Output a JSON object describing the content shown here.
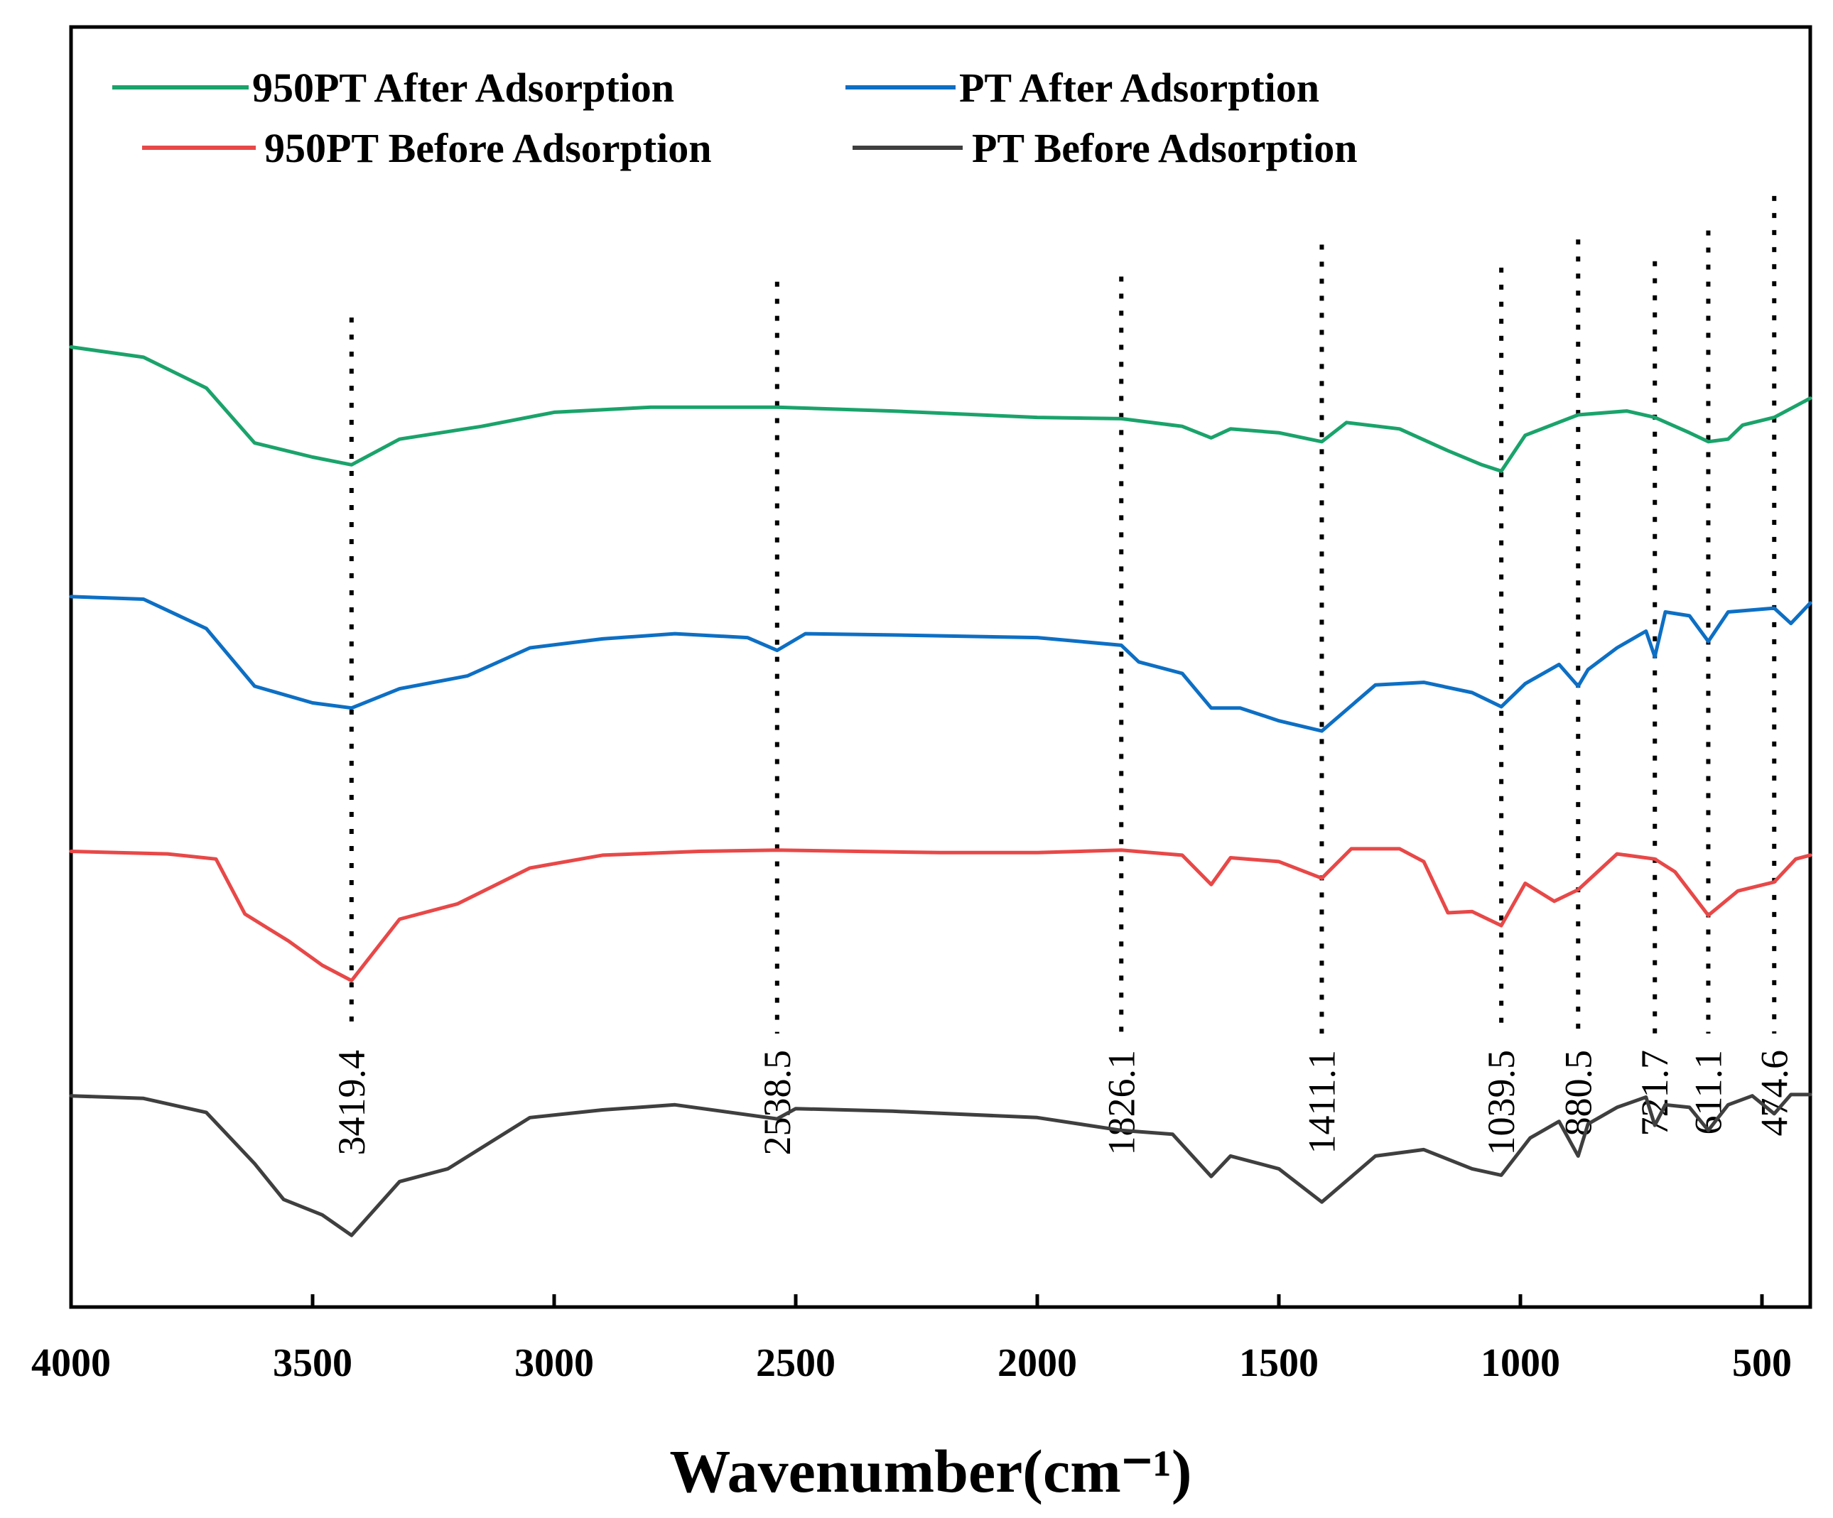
{
  "chart_data": {
    "type": "line",
    "title": "",
    "xlabel": "Wavenumber(cm⁻¹)",
    "ylabel": "",
    "xlim": [
      4000,
      400
    ],
    "ylim": [
      0,
      100
    ],
    "x_reversed": true,
    "grid": false,
    "legend_position": "top",
    "xticks": [
      "4000",
      "3500",
      "3000",
      "2500",
      "2000",
      "1500",
      "1000",
      "500"
    ],
    "series": [
      {
        "name": "950PT After Adsorption",
        "legend_label": "950PT After Adsorption",
        "color": "#1aa36b",
        "points": [
          [
            4000,
            75.0
          ],
          [
            3850,
            74.2
          ],
          [
            3720,
            71.8
          ],
          [
            3620,
            67.5
          ],
          [
            3500,
            66.4
          ],
          [
            3419.4,
            65.8
          ],
          [
            3320,
            67.8
          ],
          [
            3150,
            68.8
          ],
          [
            3000,
            69.9
          ],
          [
            2800,
            70.3
          ],
          [
            2538.5,
            70.3
          ],
          [
            2300,
            70.0
          ],
          [
            2000,
            69.5
          ],
          [
            1826.1,
            69.4
          ],
          [
            1700,
            68.8
          ],
          [
            1640,
            67.9
          ],
          [
            1600,
            68.6
          ],
          [
            1500,
            68.3
          ],
          [
            1411.1,
            67.6
          ],
          [
            1360,
            69.1
          ],
          [
            1250,
            68.6
          ],
          [
            1150,
            66.9
          ],
          [
            1080,
            65.8
          ],
          [
            1039.5,
            65.3
          ],
          [
            990,
            68.1
          ],
          [
            880.5,
            69.7
          ],
          [
            780,
            70.0
          ],
          [
            721.7,
            69.5
          ],
          [
            650,
            68.3
          ],
          [
            611.1,
            67.6
          ],
          [
            570,
            67.8
          ],
          [
            540,
            68.9
          ],
          [
            474.6,
            69.5
          ],
          [
            400,
            71.0
          ]
        ]
      },
      {
        "name": "PT After Adsorption",
        "legend_label": "PT After Adsorption",
        "color": "#0d6fc4",
        "points": [
          [
            4000,
            55.5
          ],
          [
            3850,
            55.3
          ],
          [
            3720,
            53.0
          ],
          [
            3620,
            48.5
          ],
          [
            3500,
            47.2
          ],
          [
            3419.4,
            46.8
          ],
          [
            3320,
            48.3
          ],
          [
            3180,
            49.3
          ],
          [
            3050,
            51.5
          ],
          [
            2900,
            52.2
          ],
          [
            2750,
            52.6
          ],
          [
            2600,
            52.3
          ],
          [
            2538.5,
            51.3
          ],
          [
            2480,
            52.6
          ],
          [
            2300,
            52.5
          ],
          [
            2000,
            52.3
          ],
          [
            1826.1,
            51.7
          ],
          [
            1790,
            50.4
          ],
          [
            1700,
            49.5
          ],
          [
            1640,
            46.8
          ],
          [
            1580,
            46.8
          ],
          [
            1500,
            45.8
          ],
          [
            1411.1,
            45.0
          ],
          [
            1300,
            48.6
          ],
          [
            1200,
            48.8
          ],
          [
            1100,
            48.0
          ],
          [
            1039.5,
            46.9
          ],
          [
            990,
            48.7
          ],
          [
            920,
            50.2
          ],
          [
            880.5,
            48.5
          ],
          [
            860,
            49.8
          ],
          [
            800,
            51.5
          ],
          [
            740,
            52.8
          ],
          [
            721.7,
            50.8
          ],
          [
            700,
            54.3
          ],
          [
            650,
            54.0
          ],
          [
            611.1,
            52.0
          ],
          [
            570,
            54.3
          ],
          [
            474.6,
            54.6
          ],
          [
            440,
            53.4
          ],
          [
            400,
            55.0
          ]
        ]
      },
      {
        "name": "950PT Before Adsorption",
        "legend_label": "950PT Before Adsorption",
        "color": "#e84848",
        "points": [
          [
            4000,
            35.6
          ],
          [
            3800,
            35.4
          ],
          [
            3700,
            35.0
          ],
          [
            3640,
            30.7
          ],
          [
            3550,
            28.6
          ],
          [
            3480,
            26.7
          ],
          [
            3419.4,
            25.5
          ],
          [
            3320,
            30.3
          ],
          [
            3200,
            31.5
          ],
          [
            3050,
            34.3
          ],
          [
            2900,
            35.3
          ],
          [
            2700,
            35.6
          ],
          [
            2538.5,
            35.7
          ],
          [
            2200,
            35.5
          ],
          [
            2000,
            35.5
          ],
          [
            1826.1,
            35.7
          ],
          [
            1700,
            35.3
          ],
          [
            1640,
            33.0
          ],
          [
            1600,
            35.1
          ],
          [
            1500,
            34.8
          ],
          [
            1411.1,
            33.5
          ],
          [
            1350,
            35.8
          ],
          [
            1250,
            35.8
          ],
          [
            1200,
            34.8
          ],
          [
            1150,
            30.8
          ],
          [
            1100,
            30.9
          ],
          [
            1039.5,
            29.8
          ],
          [
            990,
            33.1
          ],
          [
            930,
            31.7
          ],
          [
            880.5,
            32.6
          ],
          [
            800,
            35.4
          ],
          [
            721.7,
            35.0
          ],
          [
            680,
            34.0
          ],
          [
            611.1,
            30.6
          ],
          [
            550,
            32.5
          ],
          [
            474.6,
            33.2
          ],
          [
            430,
            35.0
          ],
          [
            400,
            35.3
          ]
        ]
      },
      {
        "name": "PT Before Adsorption",
        "legend_label": "PT Before Adsorption",
        "color": "#3f3f3f",
        "points": [
          [
            4000,
            16.5
          ],
          [
            3850,
            16.3
          ],
          [
            3720,
            15.2
          ],
          [
            3620,
            11.2
          ],
          [
            3560,
            8.4
          ],
          [
            3480,
            7.2
          ],
          [
            3419.4,
            5.6
          ],
          [
            3320,
            9.8
          ],
          [
            3220,
            10.8
          ],
          [
            3050,
            14.8
          ],
          [
            2900,
            15.4
          ],
          [
            2750,
            15.8
          ],
          [
            2538.5,
            14.7
          ],
          [
            2500,
            15.5
          ],
          [
            2300,
            15.3
          ],
          [
            2000,
            14.8
          ],
          [
            1826.1,
            13.8
          ],
          [
            1720,
            13.5
          ],
          [
            1640,
            10.2
          ],
          [
            1600,
            11.8
          ],
          [
            1500,
            10.8
          ],
          [
            1411.1,
            8.2
          ],
          [
            1300,
            11.8
          ],
          [
            1200,
            12.3
          ],
          [
            1100,
            10.8
          ],
          [
            1039.5,
            10.3
          ],
          [
            980,
            13.2
          ],
          [
            920,
            14.5
          ],
          [
            880.5,
            11.8
          ],
          [
            860,
            14.3
          ],
          [
            800,
            15.6
          ],
          [
            740,
            16.4
          ],
          [
            721.7,
            14.2
          ],
          [
            700,
            15.8
          ],
          [
            650,
            15.6
          ],
          [
            611.1,
            13.8
          ],
          [
            570,
            15.8
          ],
          [
            520,
            16.5
          ],
          [
            474.6,
            15.1
          ],
          [
            440,
            16.6
          ],
          [
            400,
            16.6
          ]
        ]
      }
    ],
    "peaks": [
      {
        "x": 3419.4,
        "label": "3419.4",
        "line_top": 77.3
      },
      {
        "x": 2538.5,
        "label": "2538.5",
        "line_top": 80.1
      },
      {
        "x": 1826.1,
        "label": "1826.1",
        "line_top": 80.5
      },
      {
        "x": 1411.1,
        "label": "1411.1",
        "line_top": 83.0
      },
      {
        "x": 1039.5,
        "label": "1039.5",
        "line_top": 81.2
      },
      {
        "x": 880.5,
        "label": "880.5",
        "line_top": 83.4
      },
      {
        "x": 721.7,
        "label": "721.7",
        "line_top": 81.7
      },
      {
        "x": 611.1,
        "label": "611.1",
        "line_top": 84.1
      },
      {
        "x": 474.6,
        "label": "474.6",
        "line_top": 86.8
      }
    ]
  }
}
